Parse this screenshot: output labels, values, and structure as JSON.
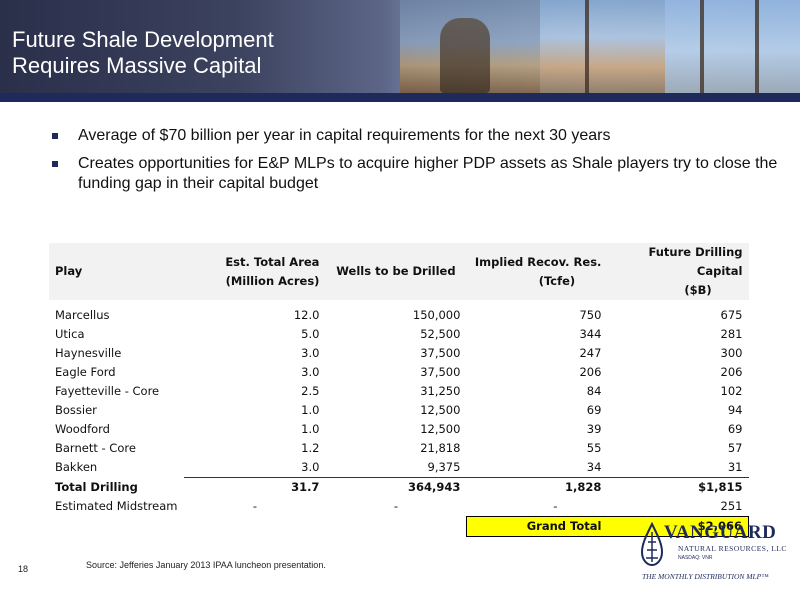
{
  "header": {
    "title_line1": "Future Shale Development",
    "title_line2": "Requires Massive Capital"
  },
  "bullets": [
    "Average of $70 billion per year in capital requirements for the next 30 years",
    "Creates opportunities for E&P MLPs to acquire higher PDP assets as Shale players try to close the funding gap in their capital budget"
  ],
  "table": {
    "headers": {
      "play": "Play",
      "area_l1": "Est. Total Area",
      "area_l2": "(Million Acres)",
      "wells": "Wells to be Drilled",
      "recov_l1": "Implied Recov. Res.",
      "recov_l2": "(Tcfe)",
      "capital_l1": "Future Drilling Capital",
      "capital_l2": "($B)"
    },
    "rows": [
      {
        "play": "Marcellus",
        "area": "12.0",
        "wells": "150,000",
        "recov": "750",
        "capital": "675"
      },
      {
        "play": "Utica",
        "area": "5.0",
        "wells": "52,500",
        "recov": "344",
        "capital": "281"
      },
      {
        "play": "Haynesville",
        "area": "3.0",
        "wells": "37,500",
        "recov": "247",
        "capital": "300"
      },
      {
        "play": "Eagle Ford",
        "area": "3.0",
        "wells": "37,500",
        "recov": "206",
        "capital": "206"
      },
      {
        "play": "Fayetteville - Core",
        "area": "2.5",
        "wells": "31,250",
        "recov": "84",
        "capital": "102"
      },
      {
        "play": "Bossier",
        "area": "1.0",
        "wells": "12,500",
        "recov": "69",
        "capital": "94"
      },
      {
        "play": "Woodford",
        "area": "1.0",
        "wells": "12,500",
        "recov": "39",
        "capital": "69"
      },
      {
        "play": "Barnett - Core",
        "area": "1.2",
        "wells": "21,818",
        "recov": "55",
        "capital": "57"
      },
      {
        "play": "Bakken",
        "area": "3.0",
        "wells": "9,375",
        "recov": "34",
        "capital": "31"
      }
    ],
    "total": {
      "play": "Total Drilling",
      "area": "31.7",
      "wells": "364,943",
      "recov": "1,828",
      "capital": "$1,815"
    },
    "midstream": {
      "play": "Estimated Midstream",
      "area": "-",
      "wells": "-",
      "recov": "-",
      "capital": "251"
    },
    "grand_total": {
      "label": "Grand Total",
      "value": "$2,066"
    }
  },
  "footer": {
    "page_number": "18",
    "source": "Source:  Jefferies January 2013 IPAA luncheon presentation."
  },
  "logo": {
    "name": "VANGUARD",
    "subtitle": "NATURAL RESOURCES, LLC",
    "exchange": "NASDAQ: VNR",
    "tagline": "THE MONTHLY DISTRIBUTION MLP™"
  },
  "colors": {
    "navy": "#1f2a5c",
    "highlight": "#ffff00"
  }
}
